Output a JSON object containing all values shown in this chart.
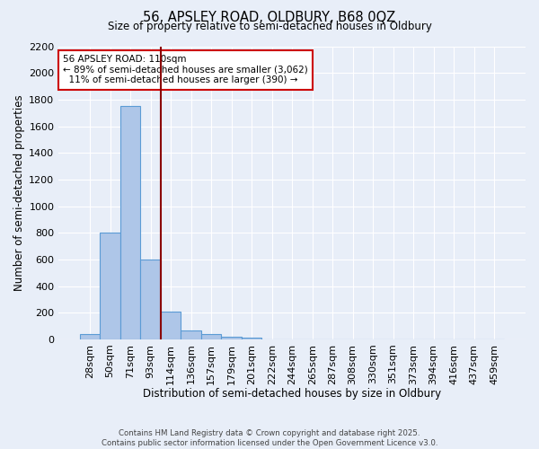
{
  "title": "56, APSLEY ROAD, OLDBURY, B68 0QZ",
  "subtitle": "Size of property relative to semi-detached houses in Oldbury",
  "xlabel": "Distribution of semi-detached houses by size in Oldbury",
  "ylabel": "Number of semi-detached properties",
  "footer_line1": "Contains HM Land Registry data © Crown copyright and database right 2025.",
  "footer_line2": "Contains public sector information licensed under the Open Government Licence v3.0.",
  "categories": [
    "28sqm",
    "50sqm",
    "71sqm",
    "93sqm",
    "114sqm",
    "136sqm",
    "157sqm",
    "179sqm",
    "201sqm",
    "222sqm",
    "244sqm",
    "265sqm",
    "287sqm",
    "308sqm",
    "330sqm",
    "351sqm",
    "373sqm",
    "394sqm",
    "416sqm",
    "437sqm",
    "459sqm"
  ],
  "values": [
    40,
    800,
    1750,
    600,
    210,
    65,
    40,
    20,
    10,
    0,
    0,
    0,
    0,
    0,
    0,
    0,
    0,
    0,
    0,
    0,
    0
  ],
  "bar_color": "#aec6e8",
  "bar_edge_color": "#5b9bd5",
  "background_color": "#e8eef8",
  "plot_background": "#e8eef8",
  "grid_color": "#ffffff",
  "vline_x_index": 3.5,
  "vline_color": "#8b0000",
  "annotation_line1": "56 APSLEY ROAD: 110sqm",
  "annotation_line2": "← 89% of semi-detached houses are smaller (3,062)",
  "annotation_line3": "  11% of semi-detached houses are larger (390) →",
  "annotation_box_color": "#ffffff",
  "annotation_edge_color": "#cc0000",
  "ylim": [
    0,
    2200
  ],
  "yticks": [
    0,
    200,
    400,
    600,
    800,
    1000,
    1200,
    1400,
    1600,
    1800,
    2000,
    2200
  ]
}
